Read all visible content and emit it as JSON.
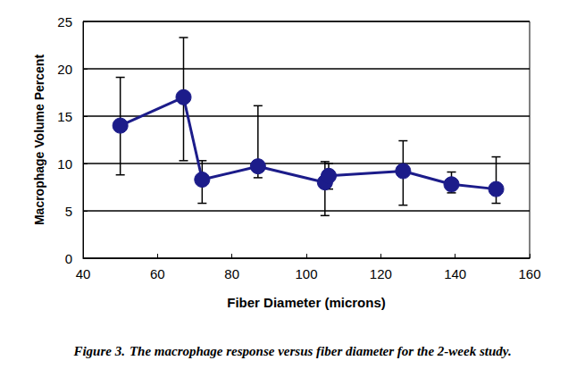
{
  "chart_data": {
    "type": "line",
    "x_label": "Fiber Diameter (microns)",
    "y_label": "Macrophage Volume Percent",
    "caption": {
      "label": "Figure 3.",
      "text": "The macrophage response versus fiber diameter for the 2-week study."
    },
    "x": [
      50,
      67,
      72,
      87,
      105,
      106,
      126,
      139,
      151
    ],
    "values": [
      14.0,
      17.0,
      8.3,
      9.7,
      8.0,
      8.7,
      9.2,
      7.8,
      7.3
    ],
    "lower": [
      8.8,
      10.3,
      5.8,
      8.5,
      4.5,
      7.3,
      5.6,
      6.9,
      5.8
    ],
    "upper": [
      19.1,
      23.3,
      10.3,
      16.1,
      10.2,
      10.0,
      12.4,
      9.1,
      10.7
    ],
    "color": "#1c1c8a",
    "marker": "circle",
    "xlim": [
      40,
      160
    ],
    "xticks": [
      40,
      60,
      80,
      100,
      120,
      140,
      160
    ],
    "ylim": [
      0,
      25
    ],
    "yticks": [
      0,
      5,
      10,
      15,
      20,
      25
    ],
    "grid": true
  }
}
